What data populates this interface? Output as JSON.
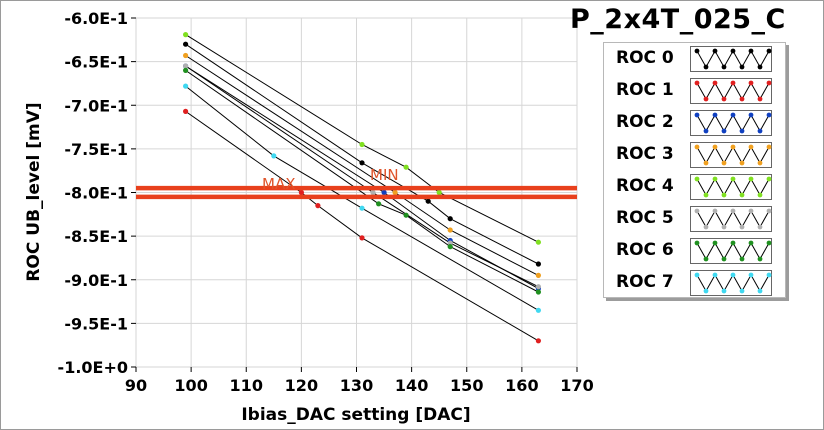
{
  "chart_data": {
    "type": "line",
    "title": "P_2x4T_025_C",
    "xlabel": "Ibias_DAC setting [DAC]",
    "ylabel": "ROC UB_level [mV]",
    "xlim": [
      90,
      170
    ],
    "ylim": [
      -1.0,
      -0.6
    ],
    "x_ticks": [
      "90",
      "100",
      "110",
      "120",
      "130",
      "140",
      "150",
      "160",
      "170"
    ],
    "y_ticks": [
      "-6.0E-1",
      "-6.5E-1",
      "-7.0E-1",
      "-7.5E-1",
      "-8.0E-1",
      "-8.5E-1",
      "-9.0E-1",
      "-9.5E-1",
      "-1.0E+0"
    ],
    "grid": true,
    "legend_position": "right",
    "annotations": [
      "MAX",
      "MIN"
    ],
    "thresholds": [
      -0.795,
      -0.805
    ],
    "series": [
      {
        "name": "ROC 0",
        "color": "#000000",
        "points": [
          [
            99,
            -0.63
          ],
          [
            131,
            -0.766
          ],
          [
            143,
            -0.81
          ],
          [
            147,
            -0.83
          ],
          [
            163,
            -0.882
          ]
        ]
      },
      {
        "name": "ROC 1",
        "color": "#e02020",
        "points": [
          [
            99,
            -0.707
          ],
          [
            120,
            -0.8
          ],
          [
            123,
            -0.815
          ],
          [
            131,
            -0.852
          ],
          [
            163,
            -0.97
          ]
        ]
      },
      {
        "name": "ROC 2",
        "color": "#1040c0",
        "points": [
          [
            99,
            -0.655
          ],
          [
            135,
            -0.8
          ],
          [
            147,
            -0.855
          ],
          [
            163,
            -0.91
          ]
        ]
      },
      {
        "name": "ROC 3",
        "color": "#f0a020",
        "points": [
          [
            99,
            -0.643
          ],
          [
            137,
            -0.8
          ],
          [
            147,
            -0.843
          ],
          [
            163,
            -0.895
          ]
        ]
      },
      {
        "name": "ROC 4",
        "color": "#80e020",
        "points": [
          [
            99,
            -0.619
          ],
          [
            131,
            -0.745
          ],
          [
            139,
            -0.771
          ],
          [
            145,
            -0.8
          ],
          [
            163,
            -0.857
          ]
        ]
      },
      {
        "name": "ROC 5",
        "color": "#b0b0b0",
        "points": [
          [
            99,
            -0.655
          ],
          [
            133,
            -0.8
          ],
          [
            147,
            -0.858
          ],
          [
            163,
            -0.908
          ]
        ]
      },
      {
        "name": "ROC 6",
        "color": "#209020",
        "points": [
          [
            99,
            -0.66
          ],
          [
            134,
            -0.813
          ],
          [
            139,
            -0.826
          ],
          [
            147,
            -0.862
          ],
          [
            163,
            -0.914
          ]
        ]
      },
      {
        "name": "ROC 7",
        "color": "#40d8f0",
        "points": [
          [
            99,
            -0.678
          ],
          [
            115,
            -0.758
          ],
          [
            131,
            -0.818
          ],
          [
            163,
            -0.935
          ]
        ]
      }
    ]
  }
}
